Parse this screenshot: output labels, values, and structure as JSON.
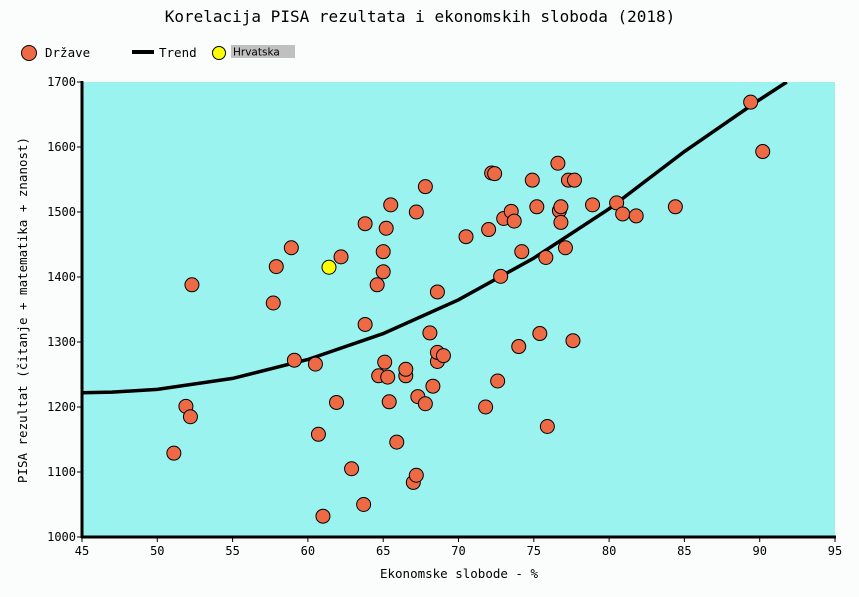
{
  "chart_data": {
    "type": "scatter",
    "title": "Korelacija PISA rezultata i ekonomskih sloboda (2018)",
    "xlabel": "Ekonomske slobode - %",
    "ylabel": "PISA rezultat (čitanje + matematika + znanost)",
    "xlim": [
      45,
      95
    ],
    "ylim": [
      1000,
      1700
    ],
    "x_ticks": [
      "45",
      "50",
      "55",
      "60",
      "65",
      "70",
      "75",
      "80",
      "85",
      "90",
      "95"
    ],
    "y_ticks": [
      "1000",
      "1100",
      "1200",
      "1300",
      "1400",
      "1500",
      "1600",
      "1700"
    ],
    "grid": false,
    "legend_position": "top-left",
    "colors": {
      "plot_background": "#9af3ef",
      "point_fill": "#ee6a44",
      "highlight_fill": "#ffff00",
      "trend_line": "#000000"
    },
    "series": [
      {
        "name": "Države",
        "type": "scatter",
        "points": [
          [
            51.1,
            1129
          ],
          [
            51.9,
            1201
          ],
          [
            52.2,
            1185
          ],
          [
            52.3,
            1388
          ],
          [
            57.7,
            1360
          ],
          [
            57.9,
            1416
          ],
          [
            58.9,
            1445
          ],
          [
            59.1,
            1272
          ],
          [
            60.5,
            1266
          ],
          [
            60.7,
            1158
          ],
          [
            61.0,
            1032
          ],
          [
            61.9,
            1207
          ],
          [
            62.2,
            1431
          ],
          [
            62.9,
            1105
          ],
          [
            63.7,
            1050
          ],
          [
            63.8,
            1482
          ],
          [
            63.8,
            1327
          ],
          [
            64.6,
            1388
          ],
          [
            64.7,
            1248
          ],
          [
            65.0,
            1439
          ],
          [
            65.0,
            1408
          ],
          [
            65.1,
            1269
          ],
          [
            65.2,
            1475
          ],
          [
            65.3,
            1246
          ],
          [
            65.4,
            1208
          ],
          [
            65.5,
            1511
          ],
          [
            65.9,
            1146
          ],
          [
            66.5,
            1248
          ],
          [
            66.5,
            1258
          ],
          [
            67.0,
            1084
          ],
          [
            67.2,
            1095
          ],
          [
            67.2,
            1500
          ],
          [
            67.3,
            1216
          ],
          [
            67.8,
            1205
          ],
          [
            67.8,
            1539
          ],
          [
            68.1,
            1314
          ],
          [
            68.3,
            1232
          ],
          [
            68.6,
            1270
          ],
          [
            68.6,
            1284
          ],
          [
            68.6,
            1377
          ],
          [
            69.0,
            1279
          ],
          [
            70.5,
            1462
          ],
          [
            71.8,
            1200
          ],
          [
            72.0,
            1473
          ],
          [
            72.2,
            1560
          ],
          [
            72.4,
            1559
          ],
          [
            72.6,
            1240
          ],
          [
            72.8,
            1401
          ],
          [
            73.0,
            1490
          ],
          [
            73.5,
            1501
          ],
          [
            73.7,
            1486
          ],
          [
            74.0,
            1293
          ],
          [
            74.2,
            1439
          ],
          [
            74.9,
            1549
          ],
          [
            75.2,
            1508
          ],
          [
            75.4,
            1313
          ],
          [
            75.8,
            1430
          ],
          [
            75.9,
            1170
          ],
          [
            76.6,
            1575
          ],
          [
            76.7,
            1502
          ],
          [
            76.8,
            1484
          ],
          [
            76.8,
            1508
          ],
          [
            77.1,
            1445
          ],
          [
            77.3,
            1549
          ],
          [
            77.6,
            1302
          ],
          [
            77.7,
            1549
          ],
          [
            78.9,
            1511
          ],
          [
            80.5,
            1514
          ],
          [
            80.9,
            1497
          ],
          [
            81.8,
            1494
          ],
          [
            84.4,
            1508
          ],
          [
            89.4,
            1669
          ],
          [
            90.2,
            1593
          ]
        ]
      },
      {
        "name": "Trend",
        "type": "line",
        "points": [
          [
            45,
            1222
          ],
          [
            47,
            1223
          ],
          [
            50,
            1227
          ],
          [
            55,
            1244
          ],
          [
            60,
            1273
          ],
          [
            65,
            1313
          ],
          [
            70,
            1365
          ],
          [
            75,
            1429
          ],
          [
            80,
            1505
          ],
          [
            85,
            1593
          ],
          [
            90,
            1673
          ],
          [
            91.8,
            1700
          ]
        ]
      },
      {
        "name": "Hrvatska",
        "type": "scatter",
        "points": [
          [
            61.4,
            1415
          ]
        ]
      }
    ]
  }
}
